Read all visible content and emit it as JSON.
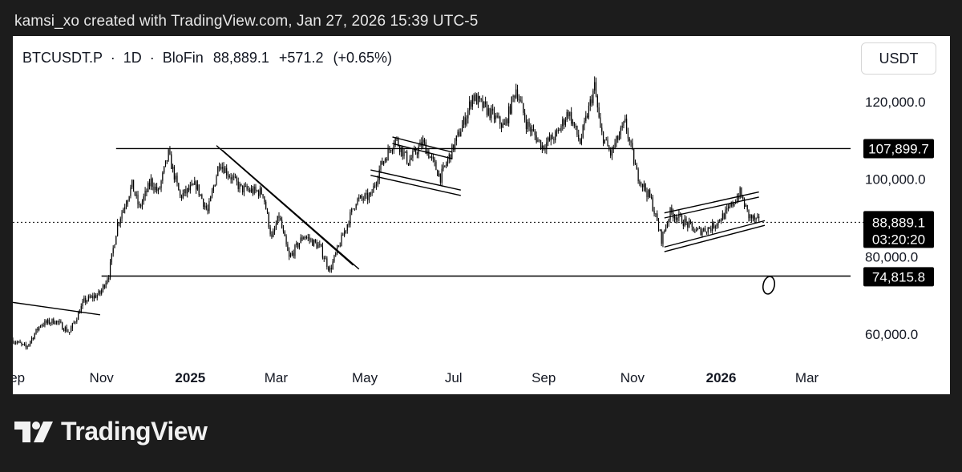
{
  "header": {
    "caption": "kamsi_xo created with TradingView.com, Jan 27, 2026 15:39 UTC-5"
  },
  "symbol": {
    "ticker": "BTCUSDT.P",
    "interval": "1D",
    "exchange": "BloFin",
    "sep": "·",
    "last": "88,889.1",
    "change": "+571.2",
    "change_pct": "(+0.65%)"
  },
  "unit_button": "USDT",
  "countdown": "03:20:20",
  "annotation": "O",
  "logo": {
    "text": "TradingView"
  },
  "colors": {
    "background": "#1c1c1c",
    "chart_bg": "#ffffff",
    "candles": "#000000",
    "price_tag_bg": "#000000",
    "price_tag_text": "#ffffff"
  },
  "chart_data": {
    "type": "candlestick",
    "grid": false,
    "ylim": [
      52000,
      132000
    ],
    "y_ticks": [
      {
        "value": 120000,
        "label": "120,000.0"
      },
      {
        "value": 100000,
        "label": "100,000.0"
      },
      {
        "value": 80000,
        "label": "80,000.0"
      },
      {
        "value": 60000,
        "label": "60,000.0"
      }
    ],
    "x_ticks": [
      {
        "date": "2024-09-01",
        "label": "Sep",
        "bold": false
      },
      {
        "date": "2024-11-01",
        "label": "Nov",
        "bold": false
      },
      {
        "date": "2025-01-01",
        "label": "2025",
        "bold": true
      },
      {
        "date": "2025-03-01",
        "label": "Mar",
        "bold": false
      },
      {
        "date": "2025-05-01",
        "label": "May",
        "bold": false
      },
      {
        "date": "2025-07-01",
        "label": "Jul",
        "bold": false
      },
      {
        "date": "2025-09-01",
        "label": "Sep",
        "bold": false
      },
      {
        "date": "2025-11-01",
        "label": "Nov",
        "bold": false
      },
      {
        "date": "2026-01-01",
        "label": "2026",
        "bold": true
      },
      {
        "date": "2026-03-01",
        "label": "Mar",
        "bold": false
      }
    ],
    "price_labels": [
      {
        "value": 107899.7,
        "label": "107,899.7"
      },
      {
        "value": 88889.1,
        "label": "88,889.1",
        "current": true
      },
      {
        "value": 74815.8,
        "label": "74,815.8"
      }
    ],
    "close_path": [
      [
        "2024-09-01",
        58500
      ],
      [
        "2024-09-10",
        56500
      ],
      [
        "2024-09-20",
        62500
      ],
      [
        "2024-09-30",
        63500
      ],
      [
        "2024-10-10",
        60500
      ],
      [
        "2024-10-20",
        68500
      ],
      [
        "2024-10-31",
        70500
      ],
      [
        "2024-11-06",
        75500
      ],
      [
        "2024-11-12",
        88500
      ],
      [
        "2024-11-22",
        98500
      ],
      [
        "2024-11-27",
        92500
      ],
      [
        "2024-12-05",
        99500
      ],
      [
        "2024-12-10",
        96500
      ],
      [
        "2024-12-17",
        106500
      ],
      [
        "2024-12-25",
        95500
      ],
      [
        "2025-01-05",
        98500
      ],
      [
        "2025-01-13",
        91500
      ],
      [
        "2025-01-21",
        104500
      ],
      [
        "2025-01-27",
        101500
      ],
      [
        "2025-02-05",
        97500
      ],
      [
        "2025-02-20",
        96500
      ],
      [
        "2025-02-26",
        84500
      ],
      [
        "2025-03-03",
        90500
      ],
      [
        "2025-03-10",
        79500
      ],
      [
        "2025-03-20",
        85500
      ],
      [
        "2025-03-31",
        82500
      ],
      [
        "2025-04-07",
        76500
      ],
      [
        "2025-04-15",
        84500
      ],
      [
        "2025-04-25",
        94500
      ],
      [
        "2025-05-05",
        95500
      ],
      [
        "2025-05-12",
        103500
      ],
      [
        "2025-05-22",
        110500
      ],
      [
        "2025-05-31",
        104500
      ],
      [
        "2025-06-10",
        109500
      ],
      [
        "2025-06-22",
        100500
      ],
      [
        "2025-06-30",
        107500
      ],
      [
        "2025-07-10",
        116500
      ],
      [
        "2025-07-14",
        121500
      ],
      [
        "2025-07-25",
        117500
      ],
      [
        "2025-08-05",
        113500
      ],
      [
        "2025-08-13",
        123500
      ],
      [
        "2025-08-20",
        114500
      ],
      [
        "2025-08-31",
        108500
      ],
      [
        "2025-09-10",
        111500
      ],
      [
        "2025-09-18",
        117500
      ],
      [
        "2025-09-26",
        109500
      ],
      [
        "2025-10-06",
        124000
      ],
      [
        "2025-10-10",
        112500
      ],
      [
        "2025-10-17",
        106500
      ],
      [
        "2025-10-27",
        114500
      ],
      [
        "2025-11-04",
        101500
      ],
      [
        "2025-11-14",
        94500
      ],
      [
        "2025-11-21",
        84500
      ],
      [
        "2025-11-27",
        91500
      ],
      [
        "2025-12-05",
        89500
      ],
      [
        "2025-12-15",
        86500
      ],
      [
        "2025-12-25",
        87500
      ],
      [
        "2026-01-05",
        91500
      ],
      [
        "2026-01-14",
        96500
      ],
      [
        "2026-01-20",
        90500
      ],
      [
        "2026-01-27",
        88889.1
      ]
    ],
    "trend_lines": [
      {
        "from": [
          "2024-09-01",
          68200
        ],
        "to": [
          "2024-10-31",
          65000
        ]
      },
      {
        "from": [
          "2024-11-01",
          75000
        ],
        "to": [
          "2026-03-31",
          75000
        ]
      },
      {
        "from": [
          "2024-11-11",
          107900
        ],
        "to": [
          "2026-03-31",
          107900
        ]
      },
      {
        "from": [
          "2025-01-19",
          108700
        ],
        "to": [
          "2025-04-23",
          77800
        ]
      },
      {
        "from": [
          "2025-01-23",
          107500
        ],
        "to": [
          "2025-04-27",
          76800
        ]
      },
      {
        "from": [
          "2025-05-20",
          110900
        ],
        "to": [
          "2025-06-30",
          107000
        ]
      },
      {
        "from": [
          "2025-05-20",
          109200
        ],
        "to": [
          "2025-06-30",
          105300
        ]
      },
      {
        "from": [
          "2025-05-05",
          102400
        ],
        "to": [
          "2025-07-06",
          97200
        ]
      },
      {
        "from": [
          "2025-05-05",
          101000
        ],
        "to": [
          "2025-07-06",
          95800
        ]
      },
      {
        "from": [
          "2025-11-23",
          91300
        ],
        "to": [
          "2026-01-27",
          96700
        ]
      },
      {
        "from": [
          "2025-11-23",
          90000
        ],
        "to": [
          "2026-01-27",
          95400
        ]
      },
      {
        "from": [
          "2025-11-23",
          82500
        ],
        "to": [
          "2026-01-31",
          89300
        ]
      },
      {
        "from": [
          "2025-11-23",
          81300
        ],
        "to": [
          "2026-01-31",
          88100
        ]
      }
    ]
  }
}
